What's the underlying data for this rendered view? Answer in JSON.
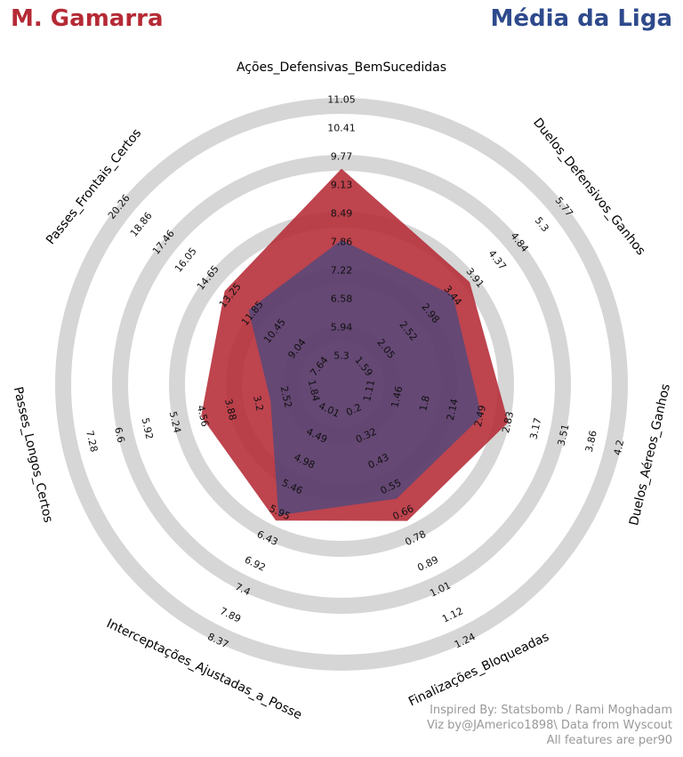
{
  "header": {
    "player": "M. Gamarra",
    "comparison": "Média da Liga"
  },
  "colors": {
    "player": "#b52a35",
    "comparison": "#2e4a8c",
    "ring_band": "#d6d6d6",
    "background": "#ffffff"
  },
  "credits": {
    "line1": "Inspired By: Statsbomb / Rami Moghadam",
    "line2": "Viz by@JAmerico1898\\ Data from Wyscout",
    "line3": "All features are per90"
  },
  "chart_data": {
    "type": "radar",
    "num_rings": 10,
    "features": [
      {
        "name": "Ações_Defensivas_BemSucedidas",
        "ticks": [
          "5.3",
          "5.94",
          "6.58",
          "7.22",
          "7.86",
          "8.49",
          "9.13",
          "9.77",
          "10.41",
          "11.05"
        ],
        "player": 9.5,
        "league": 7.9
      },
      {
        "name": "Duelos_Defensivos_Ganhos",
        "ticks": [
          "1.59",
          "2.05",
          "2.52",
          "2.98",
          "3.44",
          "3.91",
          "4.37",
          "4.84",
          "5.3",
          "5.77"
        ],
        "player": 3.8,
        "league": 3.45
      },
      {
        "name": "Duelos_Aéreos_Ganhos",
        "ticks": [
          "1.11",
          "1.46",
          "1.8",
          "2.14",
          "2.49",
          "2.83",
          "3.17",
          "3.51",
          "3.86",
          "4.2"
        ],
        "player": 2.83,
        "league": 2.5
      },
      {
        "name": "Finalizações_Bloqueadas",
        "ticks": [
          "0.2",
          "0.32",
          "0.43",
          "0.55",
          "0.66",
          "0.78",
          "0.89",
          "1.01",
          "1.12",
          "1.24"
        ],
        "player": 0.7,
        "league": 0.6
      },
      {
        "name": "Interceptações_Ajustadas_a_Posse",
        "ticks": [
          "4.01",
          "4.49",
          "4.98",
          "5.46",
          "5.95",
          "6.43",
          "6.92",
          "7.4",
          "7.89",
          "8.37"
        ],
        "player": 6.1,
        "league": 6.0
      },
      {
        "name": "Passes_Longos_Certos",
        "ticks": [
          "1.84",
          "2.52",
          "3.2",
          "3.88",
          "4.56",
          "5.24",
          "5.92",
          "6.6",
          "7.28",
          ""
        ],
        "player": 4.6,
        "league": 2.9
      },
      {
        "name": "Passes_Frontais_Certos",
        "ticks": [
          "7.64",
          "9.04",
          "10.45",
          "11.85",
          "13.25",
          "14.65",
          "16.05",
          "17.46",
          "18.86",
          "20.26"
        ],
        "player": 13.6,
        "league": 12.1
      }
    ]
  }
}
